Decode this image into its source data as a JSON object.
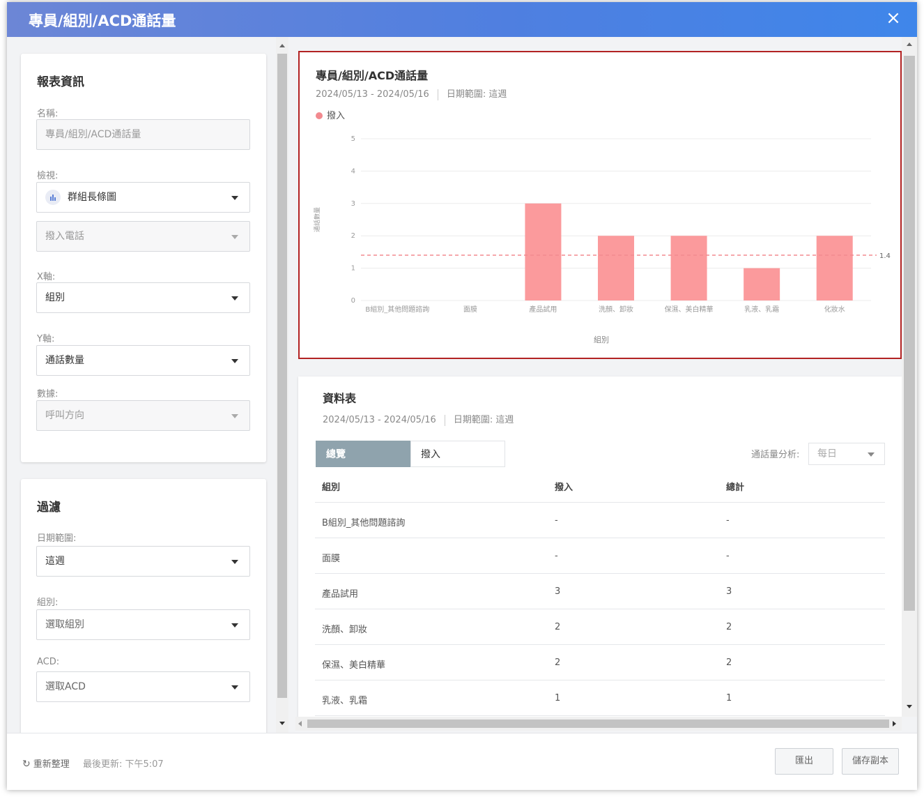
{
  "dialog": {
    "title": "專員/組別/ACD通話量",
    "close_icon": "×"
  },
  "report_info": {
    "heading": "報表資訊",
    "name_label": "名稱:",
    "name_value": "專員/組別/ACD通話量",
    "view_label": "檢視:",
    "view_value": "群組長條圖",
    "view_sub_value": "撥入電話",
    "x_label": "X軸:",
    "x_value": "組別",
    "y_label": "Y軸:",
    "y_value": "通話數量",
    "data_label": "數據:",
    "data_value": "呼叫方向"
  },
  "filter": {
    "heading": "過濾",
    "date_label": "日期範圍:",
    "date_value": "這週",
    "group_label": "組別:",
    "group_value": "選取組別",
    "acd_label": "ACD:",
    "acd_value": "選取ACD"
  },
  "chart_card": {
    "title": "專員/組別/ACD通話量",
    "date_range": "2024/05/13 - 2024/05/16",
    "date_scope": "日期範圍: 這週"
  },
  "chart_data": {
    "type": "bar",
    "categories": [
      "B組別_其他問題諮詢",
      "面膜",
      "產品試用",
      "洗顏、卸妝",
      "保濕、美白精華",
      "乳液、乳霜",
      "化妝水"
    ],
    "series": [
      {
        "name": "撥入",
        "values": [
          0,
          0,
          3,
          2,
          2,
          1,
          2
        ],
        "color": "#fb9a9c"
      }
    ],
    "xlabel": "組別",
    "ylabel": "通話數量",
    "ylim": [
      0,
      5
    ],
    "yticks": [
      0,
      1,
      2,
      3,
      4,
      5
    ],
    "average_line": {
      "value": 1.4,
      "label": "1.4",
      "color": "#f28a8f"
    },
    "grid": true,
    "legend": "top-left"
  },
  "table_card": {
    "title": "資料表",
    "date_range": "2024/05/13 - 2024/05/16",
    "date_scope": "日期範圍: 這週",
    "tabs": [
      "總覽",
      "撥入"
    ],
    "analysis_label": "通話量分析:",
    "analysis_value": "每日",
    "columns": [
      "組別",
      "撥入",
      "總計"
    ],
    "rows": [
      [
        "B組別_其他問題諮詢",
        "-",
        "-"
      ],
      [
        "面膜",
        "-",
        "-"
      ],
      [
        "產品試用",
        "3",
        "3"
      ],
      [
        "洗顏、卸妝",
        "2",
        "2"
      ],
      [
        "保濕、美白精華",
        "2",
        "2"
      ],
      [
        "乳液、乳霜",
        "1",
        "1"
      ]
    ]
  },
  "footer": {
    "refresh_icon": "↻",
    "refresh_label": "重新整理",
    "last_updated": "最後更新: 下午5:07",
    "export_label": "匯出",
    "save_copy_label": "儲存副本"
  }
}
